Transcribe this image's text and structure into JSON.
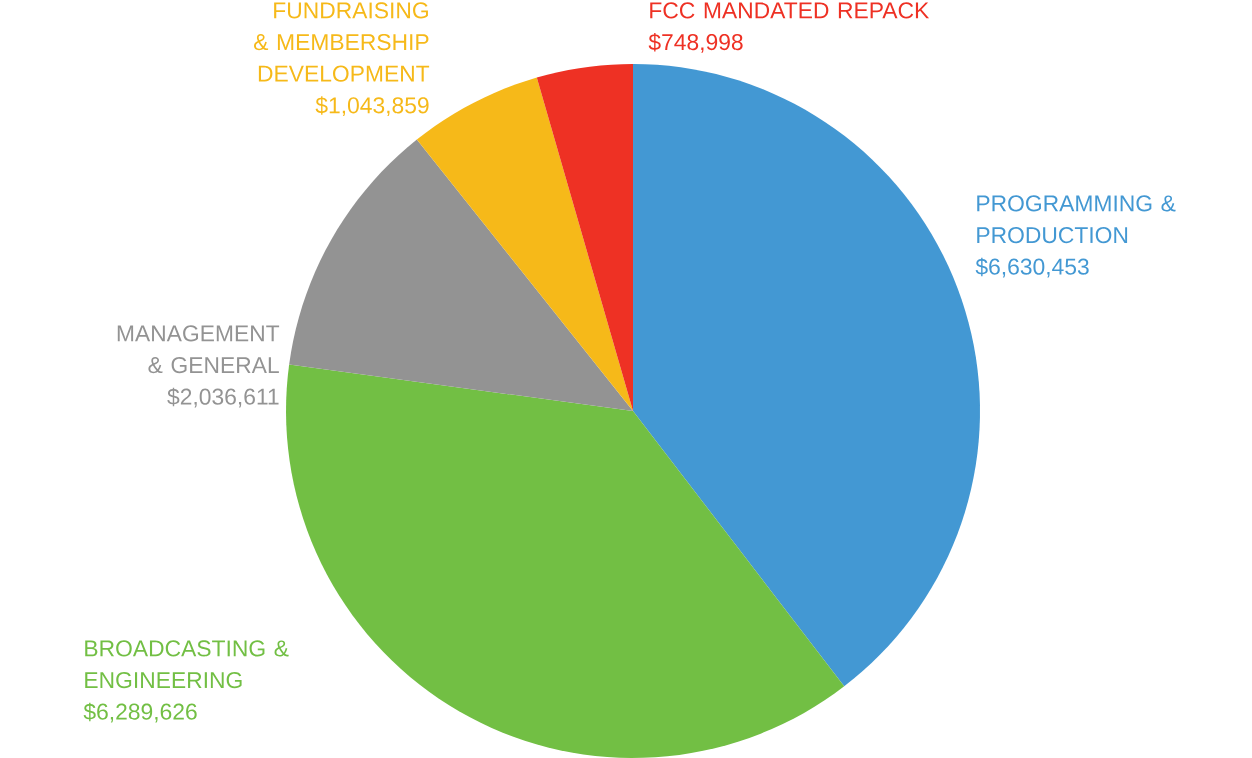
{
  "chart_data": {
    "type": "pie",
    "categories": [
      "PROGRAMMING & PRODUCTION",
      "BROADCASTING & ENGINEERING",
      "MANAGEMENT & GENERAL",
      "FUNDRAISING & MEMBERSHIP DEVELOPMENT",
      "FCC MANDATED REPACK"
    ],
    "values": [
      6630453,
      6289626,
      2036611,
      1043859,
      748998
    ],
    "value_labels": [
      "$6,630,453",
      "$6,289,626",
      "$2,036,611",
      "$1,043,859",
      "$748,998"
    ],
    "colors": [
      "#4398d3",
      "#72bf44",
      "#939393",
      "#f6b919",
      "#ee3124"
    ]
  }
}
